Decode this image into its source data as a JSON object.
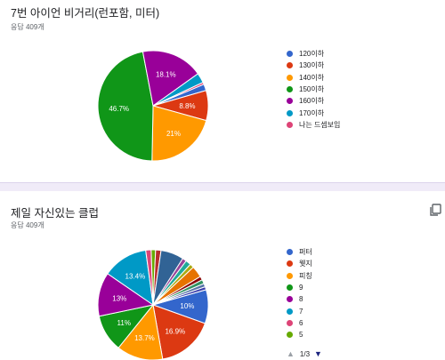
{
  "questions": [
    {
      "title": "7번 아이언 비거리(런포함, 미터)",
      "responses": "응답 409개"
    },
    {
      "title": "제일 자신있는 클럽",
      "responses": "응답 409개"
    }
  ],
  "chart_data": [
    {
      "type": "pie",
      "title": "7번 아이언 비거리(런포함, 미터)",
      "slices": [
        {
          "label": "120이하",
          "value": 1.9,
          "color": "#3366cc"
        },
        {
          "label": "130이하",
          "value": 8.8,
          "color": "#dc3912",
          "data_label": "8.8%"
        },
        {
          "label": "140이하",
          "value": 21.0,
          "color": "#ff9900",
          "data_label": "21%"
        },
        {
          "label": "150이하",
          "value": 46.7,
          "color": "#109618",
          "data_label": "46.7%"
        },
        {
          "label": "160이하",
          "value": 18.1,
          "color": "#990099",
          "data_label": "18.1%"
        },
        {
          "label": "170이하",
          "value": 2.9,
          "color": "#0099c6"
        },
        {
          "label": "나는 드셈보임",
          "value": 0.6,
          "color": "#dd4477"
        }
      ]
    },
    {
      "type": "pie",
      "title": "제일 자신있는 클럽",
      "slices": [
        {
          "label": "퍼터",
          "value": 10.0,
          "color": "#3366cc",
          "data_label": "10%"
        },
        {
          "label": "웻지",
          "value": 16.9,
          "color": "#dc3912",
          "data_label": "16.9%"
        },
        {
          "label": "피칭",
          "value": 13.7,
          "color": "#ff9900",
          "data_label": "13.7%"
        },
        {
          "label": "9",
          "value": 11.0,
          "color": "#109618",
          "data_label": "11%"
        },
        {
          "label": "8",
          "value": 13.0,
          "color": "#990099",
          "data_label": "13%"
        },
        {
          "label": "7",
          "value": 13.4,
          "color": "#0099c6",
          "data_label": "13.4%"
        },
        {
          "label": "6",
          "value": 1.6,
          "color": "#dd4477"
        },
        {
          "label": "5",
          "value": 1.3,
          "color": "#66aa00"
        },
        {
          "label": "",
          "value": 1.6,
          "color": "#b82e2e"
        },
        {
          "label": "",
          "value": 6.8,
          "color": "#316395"
        },
        {
          "label": "",
          "value": 1.2,
          "color": "#994499"
        },
        {
          "label": "",
          "value": 1.6,
          "color": "#22aa99"
        },
        {
          "label": "",
          "value": 1.2,
          "color": "#aaaa11"
        },
        {
          "label": "",
          "value": 3.4,
          "color": "#e67300"
        },
        {
          "label": "",
          "value": 1.1,
          "color": "#8b0707"
        },
        {
          "label": "",
          "value": 1.2,
          "color": "#329262"
        },
        {
          "label": "",
          "value": 1.0,
          "color": "#5574a6"
        },
        {
          "label": "",
          "value": 0.9,
          "color": "#3b3eac"
        }
      ]
    }
  ],
  "legend_pager": {
    "text": "1/3",
    "prev_icon": "triangle-up-icon",
    "next_icon": "triangle-down-icon"
  },
  "copy_icon": "copy-chart-icon"
}
